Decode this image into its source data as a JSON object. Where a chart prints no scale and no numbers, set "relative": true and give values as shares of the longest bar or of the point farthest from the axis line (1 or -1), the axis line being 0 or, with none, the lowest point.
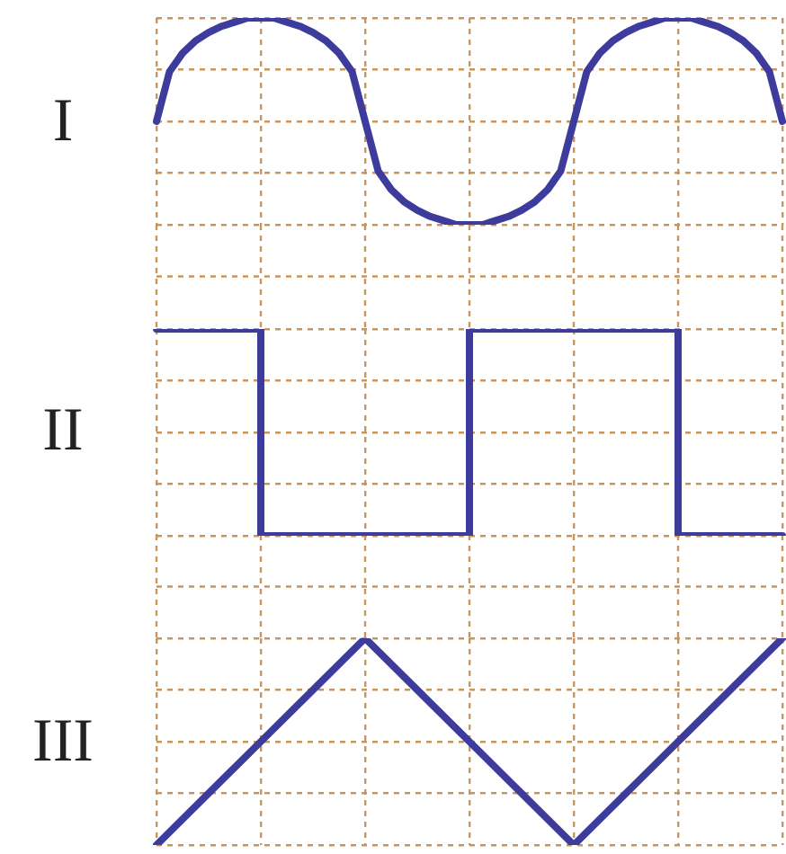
{
  "chart_data": [
    {
      "type": "line",
      "ylabel": "I",
      "relative": true,
      "grid": true,
      "marker": "none",
      "line_style": "solid",
      "categories": [
        null,
        null,
        null,
        null,
        null,
        null,
        null,
        null,
        null,
        null,
        null,
        null,
        null,
        null,
        null,
        null,
        null,
        null,
        null,
        null,
        null,
        null,
        null,
        null,
        null,
        null,
        null,
        null,
        null,
        null,
        null,
        null,
        null,
        null,
        null,
        null,
        null,
        null,
        null,
        null,
        null,
        null,
        null,
        null,
        null,
        null,
        null,
        null,
        null
      ],
      "series": [
        {
          "color": "#3d3c9c",
          "values": [
            0.5,
            0.74,
            0.83,
            0.89,
            0.93,
            0.96,
            0.98,
            1,
            1,
            1,
            0.98,
            0.96,
            0.93,
            0.89,
            0.83,
            0.74,
            0.5,
            0.26,
            0.17,
            0.11,
            0.07,
            0.04,
            0.02,
            0,
            0,
            0,
            0.02,
            0.04,
            0.07,
            0.11,
            0.17,
            0.26,
            0.5,
            0.74,
            0.83,
            0.89,
            0.93,
            0.96,
            0.98,
            1,
            1,
            1,
            0.98,
            0.96,
            0.93,
            0.89,
            0.83,
            0.74,
            0.5
          ]
        }
      ]
    },
    {
      "type": "step",
      "ylabel": "II",
      "relative": true,
      "grid": true,
      "marker": "none",
      "line_style": "solid",
      "categories": [
        null,
        null,
        null,
        null,
        null,
        null,
        null
      ],
      "series": [
        {
          "color": "#3d3c9c",
          "values": [
            1,
            0,
            0,
            1,
            1,
            0,
            0
          ]
        }
      ]
    },
    {
      "type": "line",
      "ylabel": "III",
      "relative": true,
      "grid": true,
      "marker": "none",
      "line_style": "solid",
      "categories": [
        null,
        null,
        null,
        null,
        null,
        null,
        null
      ],
      "series": [
        {
          "color": "#3d3c9c",
          "values": [
            0,
            0.5,
            1,
            0.5,
            0,
            0.5,
            1
          ]
        }
      ]
    }
  ]
}
